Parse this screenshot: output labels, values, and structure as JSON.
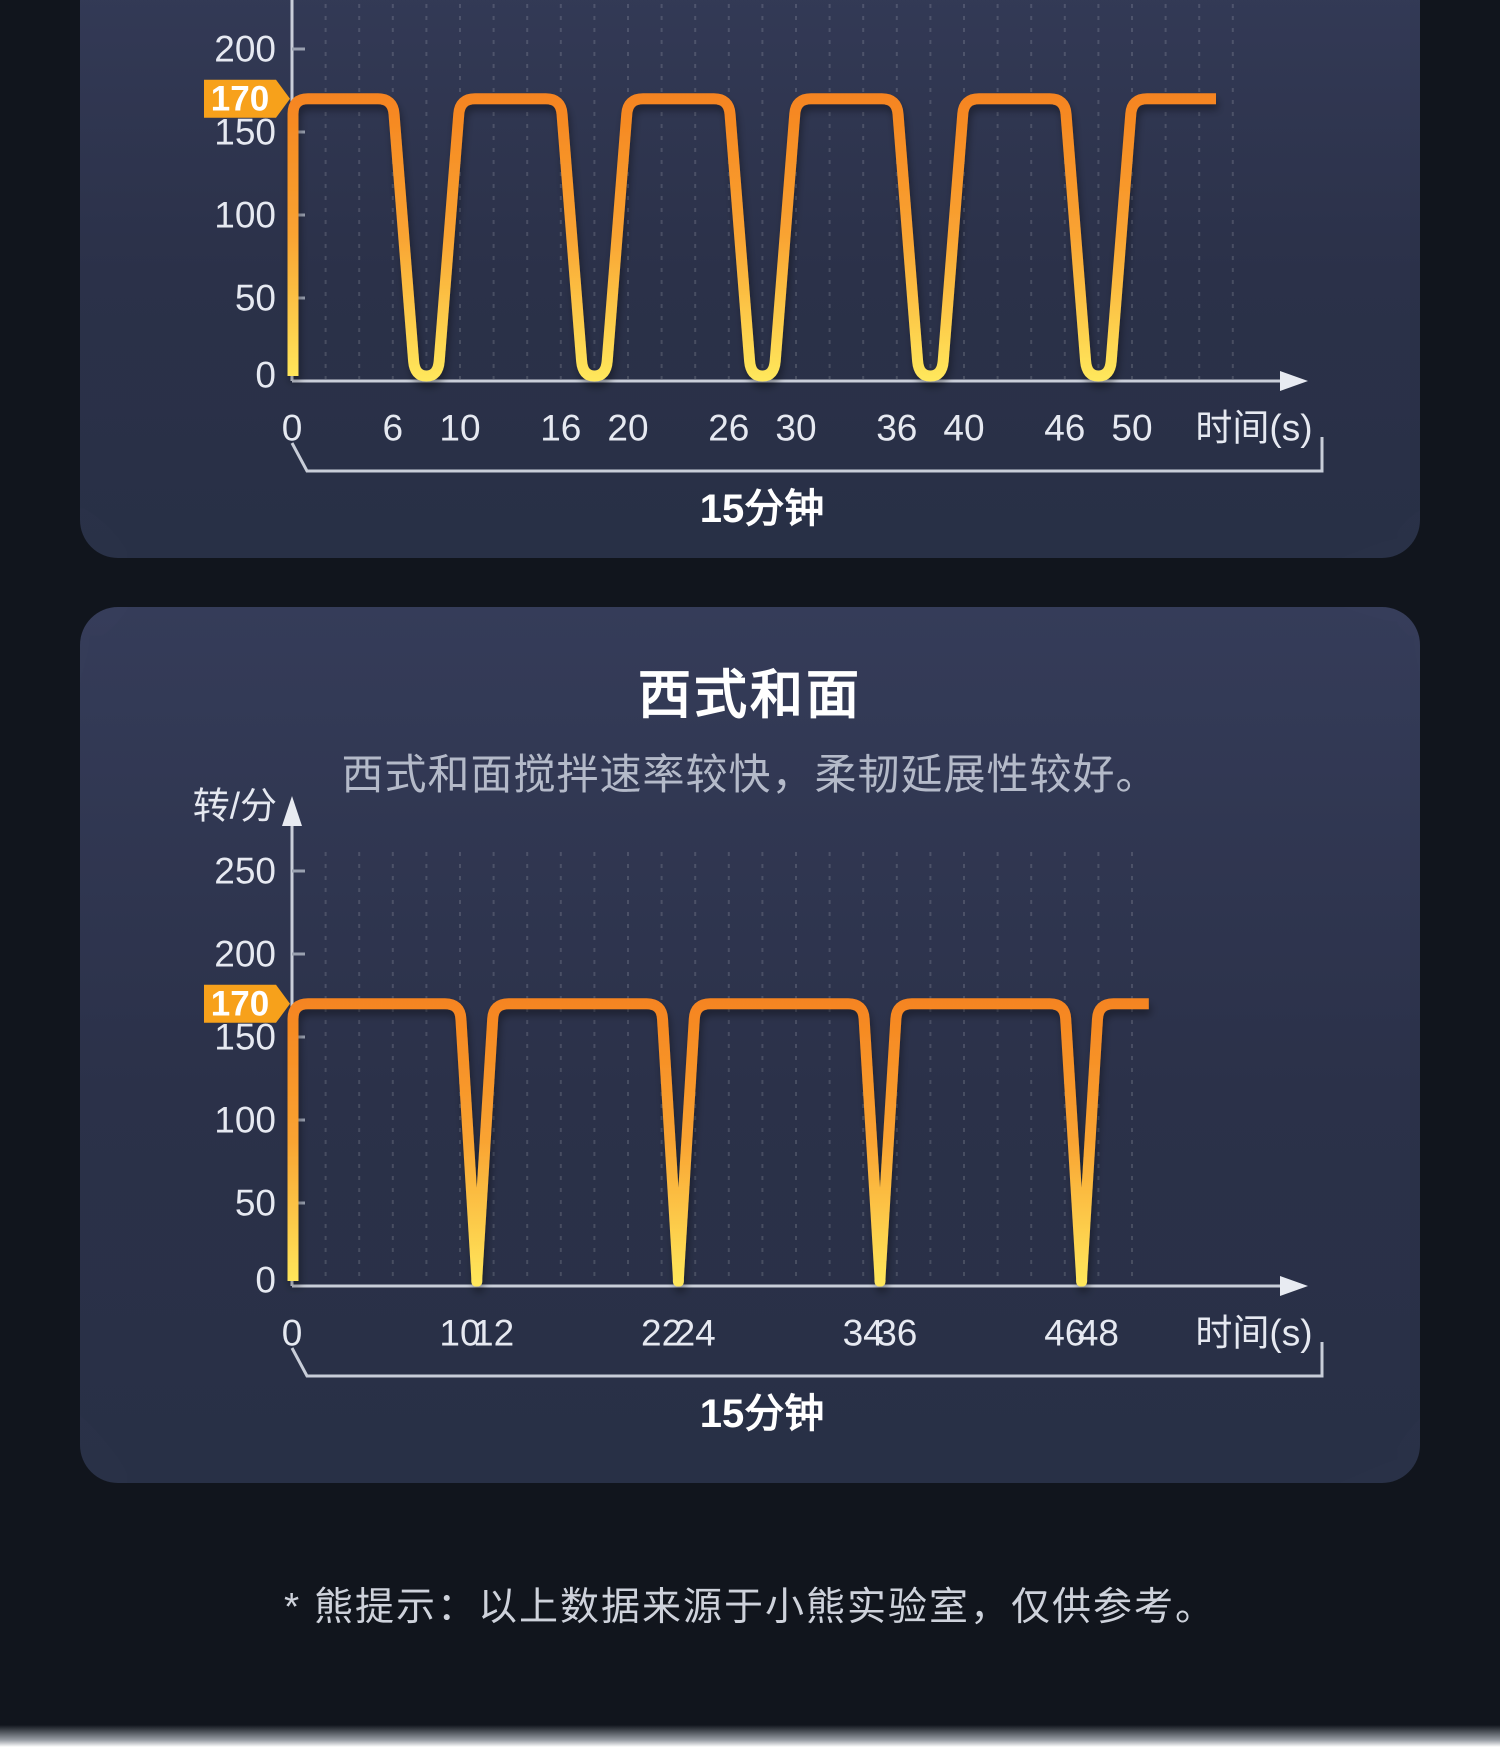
{
  "page": {
    "background_color": "#11151d",
    "panel_color": "#2b3149",
    "accent_orange": "#f7a11b",
    "footer_note": "* 熊提示：以上数据来源于小熊实验室，仅供参考。"
  },
  "chart_data": [
    {
      "type": "line",
      "description": "square-wave mixing speed profile, title cropped off-screen",
      "y_axis": {
        "ticks": [
          200,
          150,
          100,
          50,
          0
        ],
        "highlight_value": 170,
        "ylim": [
          0,
          230
        ],
        "unit_label": ""
      },
      "x_axis": {
        "label": "时间(s)",
        "ticks": [
          0,
          6,
          10,
          16,
          20,
          26,
          30,
          36,
          40,
          46,
          50
        ]
      },
      "series": [
        {
          "high": 170,
          "low": 0,
          "on_intervals": [
            [
              0,
              6
            ],
            [
              10,
              16
            ],
            [
              20,
              26
            ],
            [
              30,
              36
            ],
            [
              40,
              46
            ],
            [
              50,
              55
            ]
          ]
        }
      ],
      "duration_label": "15分钟",
      "line_gradient": [
        "#f5831f",
        "#f9a332",
        "#ffe85c"
      ],
      "grid": true,
      "legend": "none"
    },
    {
      "type": "line",
      "title": "西式和面",
      "subtitle": "西式和面搅拌速率较快，柔韧延展性较好。",
      "y_axis": {
        "ticks": [
          250,
          200,
          150,
          100,
          50,
          0
        ],
        "highlight_value": 170,
        "ylim": [
          0,
          300
        ],
        "unit_label": "转/分"
      },
      "x_axis": {
        "label": "时间(s)",
        "ticks": [
          0,
          10,
          12,
          22,
          24,
          34,
          36,
          46,
          48
        ]
      },
      "series": [
        {
          "high": 170,
          "low": 0,
          "on_intervals": [
            [
              0,
              10
            ],
            [
              12,
              22
            ],
            [
              24,
              34
            ],
            [
              36,
              46
            ],
            [
              48,
              51
            ]
          ]
        }
      ],
      "duration_label": "15分钟",
      "line_gradient": [
        "#f5831f",
        "#f9a332",
        "#ffe85c"
      ],
      "grid": true,
      "legend": "none"
    }
  ]
}
